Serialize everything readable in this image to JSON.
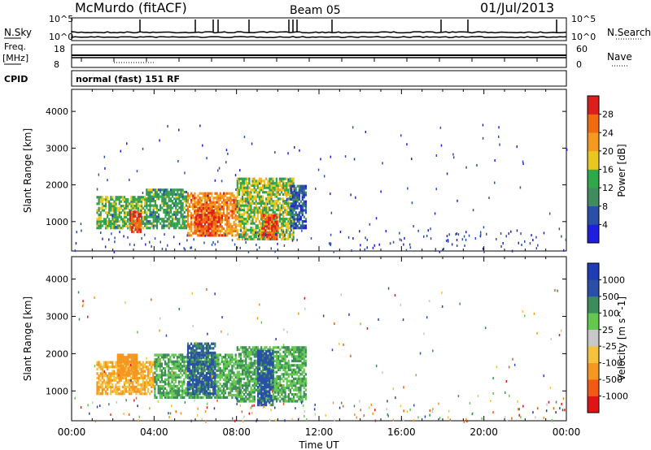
{
  "header": {
    "station": "McMurdo (fitACF)",
    "beam": "Beam 05",
    "date": "01/Jul/2013"
  },
  "noise_panel": {
    "left_label": "N.Sky",
    "left_top": "10^5",
    "left_bottom": "10^0",
    "right_label": "N.Search",
    "right_top": "10^5",
    "right_bottom": "10^0"
  },
  "freq_panel": {
    "left_label": "Freq.",
    "left_units": "[MHz]",
    "left_top": "18",
    "left_bottom": "8",
    "right_label": "Nave",
    "right_top": "60",
    "right_bottom": "0"
  },
  "cpid": {
    "label": "CPID",
    "text": "normal (fast) 151 RF"
  },
  "colors": {
    "power": [
      "#1e1ee0",
      "#2a4fa8",
      "#3f8c5c",
      "#2fa84a",
      "#e8c81e",
      "#f59a1e",
      "#f06a10",
      "#dc1e1e"
    ],
    "velocity": [
      "#e01414",
      "#f05a14",
      "#f5961e",
      "#f5c23c",
      "#c8c8c8",
      "#64c850",
      "#3c8c5a",
      "#2a4fa8",
      "#1e3cb4"
    ]
  },
  "chart_data": [
    {
      "type": "heatmap",
      "name": "power",
      "xlabel": "",
      "ylabel": "Slant Range [km]",
      "x_ticks": [
        "00:00",
        "04:00",
        "08:00",
        "12:00",
        "16:00",
        "20:00",
        "00:00"
      ],
      "y_ticks": [
        "1000",
        "2000",
        "3000",
        "4000"
      ],
      "ylim": [
        200,
        4600
      ],
      "xlim_hours": [
        0,
        24
      ],
      "colorbar": {
        "label": "Power [dB]",
        "ticks": [
          "4",
          "8",
          "12",
          "16",
          "20",
          "24",
          "28"
        ],
        "range": [
          0,
          32
        ]
      },
      "regions": [
        {
          "t0": 1.2,
          "t1": 3.6,
          "r0": 800,
          "r1": 1700,
          "level": 14
        },
        {
          "t0": 2.8,
          "t1": 3.4,
          "r0": 700,
          "r1": 1300,
          "level": 28
        },
        {
          "t0": 3.6,
          "t1": 5.6,
          "r0": 800,
          "r1": 1900,
          "level": 12
        },
        {
          "t0": 5.6,
          "t1": 8.0,
          "r0": 600,
          "r1": 1800,
          "level": 24
        },
        {
          "t0": 6.0,
          "t1": 7.2,
          "r0": 600,
          "r1": 1400,
          "level": 28
        },
        {
          "t0": 8.0,
          "t1": 10.8,
          "r0": 500,
          "r1": 2200,
          "level": 16
        },
        {
          "t0": 9.2,
          "t1": 10.0,
          "r0": 500,
          "r1": 1200,
          "level": 28
        },
        {
          "t0": 10.6,
          "t1": 11.4,
          "r0": 800,
          "r1": 2000,
          "level": 6
        }
      ]
    },
    {
      "type": "heatmap",
      "name": "velocity",
      "xlabel": "Time UT",
      "ylabel": "Slant Range [km]",
      "x_ticks": [
        "00:00",
        "04:00",
        "08:00",
        "12:00",
        "16:00",
        "20:00",
        "00:00"
      ],
      "y_ticks": [
        "1000",
        "2000",
        "3000",
        "4000"
      ],
      "ylim": [
        200,
        4600
      ],
      "xlim_hours": [
        0,
        24
      ],
      "colorbar": {
        "label": "Velocity [m s^-1]",
        "ticks": [
          "1000",
          "500",
          "100",
          "25",
          "-25",
          "-100",
          "-500",
          "-1000"
        ]
      },
      "regions": [
        {
          "t0": 1.2,
          "t1": 4.0,
          "r0": 900,
          "r1": 1800,
          "level": -100
        },
        {
          "t0": 2.2,
          "t1": 3.2,
          "r0": 1400,
          "r1": 2000,
          "level": -200
        },
        {
          "t0": 4.0,
          "t1": 8.0,
          "r0": 800,
          "r1": 2000,
          "level": 100
        },
        {
          "t0": 5.6,
          "t1": 7.0,
          "r0": 900,
          "r1": 2300,
          "level": 600
        },
        {
          "t0": 8.0,
          "t1": 11.4,
          "r0": 700,
          "r1": 2200,
          "level": 100
        },
        {
          "t0": 9.0,
          "t1": 9.8,
          "r0": 600,
          "r1": 2100,
          "level": 700
        }
      ]
    }
  ]
}
